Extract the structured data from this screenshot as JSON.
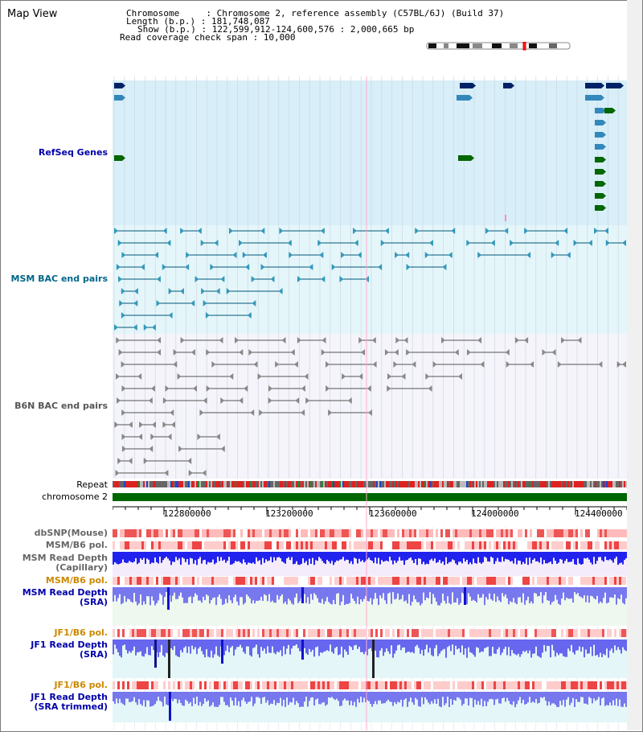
{
  "window": {
    "title": "Map View"
  },
  "info": {
    "chromosome_line": "Chromosome     : Chromosome 2, reference assembly (C57BL/6J) (Build 37)",
    "length_line": "Length (b.p.) : 181,748,087",
    "show_line": "Show (b.p.) : 122,599,912-124,600,576 : 2,000,665 bp",
    "coverage_line": "Read coverage check span : 10,000"
  },
  "tracks": {
    "refseq": {
      "label": "RefSeq Genes",
      "color": "#0000aa"
    },
    "msm_bac": {
      "label": "MSM BAC end pairs",
      "color": "#006688"
    },
    "b6n_bac": {
      "label": "B6N BAC end pairs",
      "color": "#555555"
    },
    "repeat": {
      "label": "Repeat"
    },
    "chromosome": {
      "label": "chromosome 2"
    },
    "dbsnp": {
      "label": "dbSNP(Mouse)"
    },
    "msm_b6_pol": {
      "label": "MSM/B6 pol."
    },
    "msm_read_depth_cap": {
      "label": "MSM Read Depth\n(Capillary)"
    },
    "msm_b6_pol_sra": {
      "label": "MSM/B6 pol.",
      "color": "#cc8800"
    },
    "msm_read_depth_sra": {
      "label": "MSM Read Depth\n(SRA)"
    },
    "jf1_b6_pol": {
      "label": "JF1/B6 pol.",
      "color": "#cc8800"
    },
    "jf1_read_depth_sra": {
      "label": "JF1 Read Depth\n(SRA)"
    },
    "jf1_b6_pol_trim": {
      "label": "JF1/B6 pol.",
      "color": "#cc8800"
    },
    "jf1_read_depth_trim": {
      "label": "JF1 Read Depth\n(SRA trimmed)"
    }
  },
  "axis": {
    "ticks": [
      "122800000",
      "123200000",
      "123600000",
      "124000000",
      "124400000"
    ]
  },
  "colors": {
    "refseq_bg": "#d8eef8",
    "msm_bg": "#e4f6fa",
    "b6n_bg": "#f4f4fa",
    "chromosome_bar": "#006600",
    "depth_blue": "#0000ee",
    "pol_red": "#ee3333"
  }
}
